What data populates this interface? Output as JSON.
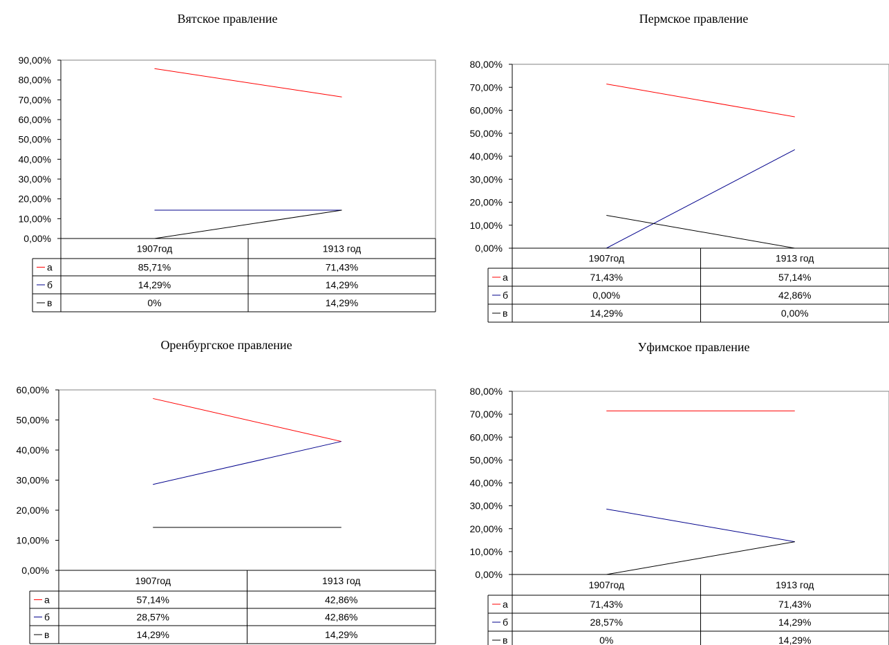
{
  "chart_data": [
    {
      "type": "line",
      "title": "Вятское правление",
      "categories": [
        "1907год",
        "1913 год"
      ],
      "ylim": [
        0,
        90
      ],
      "yticks": [
        "0,00%",
        "10,00%",
        "20,00%",
        "30,00%",
        "40,00%",
        "50,00%",
        "60,00%",
        "70,00%",
        "80,00%",
        "90,00%"
      ],
      "series": [
        {
          "name": "а",
          "color": "#ff0000",
          "values": [
            85.71,
            71.43
          ],
          "labels": [
            "85,71%",
            "71,43%"
          ]
        },
        {
          "name": "б",
          "color": "#00008b",
          "values": [
            14.29,
            14.29
          ],
          "labels": [
            "14,29%",
            "14,29%"
          ]
        },
        {
          "name": "в",
          "color": "#000000",
          "values": [
            0,
            14.29
          ],
          "labels": [
            "0%",
            "14,29%"
          ]
        }
      ],
      "legend": "data-table",
      "grid": false
    },
    {
      "type": "line",
      "title": "Пермское правление",
      "categories": [
        "1907год",
        "1913 год"
      ],
      "ylim": [
        0,
        80
      ],
      "yticks": [
        "0,00%",
        "10,00%",
        "20,00%",
        "30,00%",
        "40,00%",
        "50,00%",
        "60,00%",
        "70,00%",
        "80,00%"
      ],
      "series": [
        {
          "name": "а",
          "color": "#ff0000",
          "values": [
            71.43,
            57.14
          ],
          "labels": [
            "71,43%",
            "57,14%"
          ]
        },
        {
          "name": "б",
          "color": "#00008b",
          "values": [
            0,
            42.86
          ],
          "labels": [
            "0,00%",
            "42,86%"
          ]
        },
        {
          "name": "в",
          "color": "#000000",
          "values": [
            14.29,
            0
          ],
          "labels": [
            "14,29%",
            "0,00%"
          ]
        }
      ],
      "legend": "data-table",
      "grid": false
    },
    {
      "type": "line",
      "title": "Оренбургское правление",
      "categories": [
        "1907год",
        "1913 год"
      ],
      "ylim": [
        0,
        60
      ],
      "yticks": [
        "0,00%",
        "10,00%",
        "20,00%",
        "30,00%",
        "40,00%",
        "50,00%",
        "60,00%"
      ],
      "series": [
        {
          "name": "а",
          "color": "#ff0000",
          "values": [
            57.14,
            42.86
          ],
          "labels": [
            "57,14%",
            "42,86%"
          ]
        },
        {
          "name": "б",
          "color": "#00008b",
          "values": [
            28.57,
            42.86
          ],
          "labels": [
            "28,57%",
            "42,86%"
          ]
        },
        {
          "name": "в",
          "color": "#000000",
          "values": [
            14.29,
            14.29
          ],
          "labels": [
            "14,29%",
            "14,29%"
          ]
        }
      ],
      "legend": "data-table",
      "grid": false
    },
    {
      "type": "line",
      "title": "Уфимское правление",
      "categories": [
        "1907год",
        "1913 год"
      ],
      "ylim": [
        0,
        80
      ],
      "yticks": [
        "0,00%",
        "10,00%",
        "20,00%",
        "30,00%",
        "40,00%",
        "50,00%",
        "60,00%",
        "70,00%",
        "80,00%"
      ],
      "series": [
        {
          "name": "а",
          "color": "#ff0000",
          "values": [
            71.43,
            71.43
          ],
          "labels": [
            "71,43%",
            "71,43%"
          ]
        },
        {
          "name": "б",
          "color": "#00008b",
          "values": [
            28.57,
            14.29
          ],
          "labels": [
            "28,57%",
            "14,29%"
          ]
        },
        {
          "name": "в",
          "color": "#000000",
          "values": [
            0,
            14.29
          ],
          "labels": [
            "0%",
            "14,29%"
          ]
        }
      ],
      "legend": "data-table",
      "grid": false
    }
  ]
}
